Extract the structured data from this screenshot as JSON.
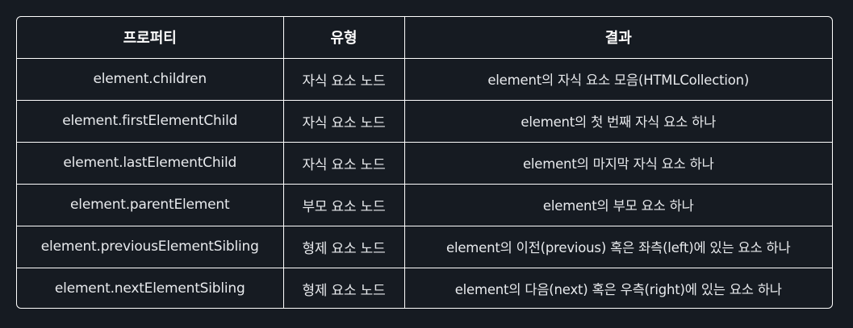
{
  "table": {
    "headers": [
      "프로퍼티",
      "유형",
      "결과"
    ],
    "rows": [
      {
        "property": "element.children",
        "type": "자식 요소 노드",
        "result": "element의 자식 요소 모음(HTMLCollection)"
      },
      {
        "property": "element.firstElementChild",
        "type": "자식 요소 노드",
        "result": "element의 첫 번째 자식 요소 하나"
      },
      {
        "property": "element.lastElementChild",
        "type": "자식 요소 노드",
        "result": "element의 마지막 자식 요소 하나"
      },
      {
        "property": "element.parentElement",
        "type": "부모 요소 노드",
        "result": "element의 부모 요소 하나"
      },
      {
        "property": "element.previousElementSibling",
        "type": "형제 요소 노드",
        "result": "element의 이전(previous) 혹은 좌측(left)에 있는 요소 하나"
      },
      {
        "property": "element.nextElementSibling",
        "type": "형제 요소 노드",
        "result": "element의 다음(next) 혹은 우측(right)에 있는 요소 하나"
      }
    ]
  },
  "colors": {
    "background": "#161b22",
    "border": "#ffffff",
    "text": "#e8eaed"
  }
}
